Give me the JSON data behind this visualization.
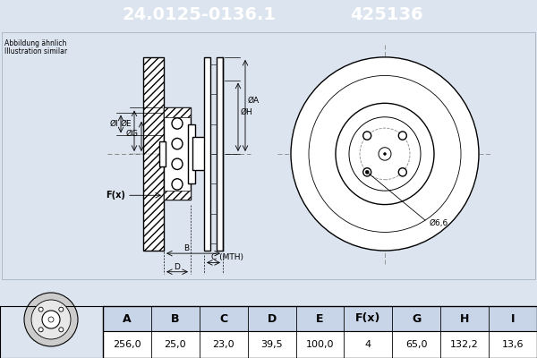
{
  "title_part_number": "24.0125-0136.1",
  "title_ref_number": "425136",
  "title_bg_color": "#3a6fb5",
  "title_text_color": "#ffffff",
  "subtitle_line1": "Abbildung ähnlich",
  "subtitle_line2": "Illustration similar",
  "table_headers": [
    "A",
    "B",
    "C",
    "D",
    "E",
    "F(x)",
    "G",
    "H",
    "I"
  ],
  "table_values": [
    "256,0",
    "25,0",
    "23,0",
    "39,5",
    "100,0",
    "4",
    "65,0",
    "132,2",
    "13,6"
  ],
  "annotation_phi66": "Ø6,6",
  "bg_color": "#dce4ef",
  "line_color": "#000000",
  "title_bg": "#2255aa",
  "gray_line": "#888888",
  "table_header_bg": "#c8d4e8",
  "table_value_bg": "#ffffff"
}
